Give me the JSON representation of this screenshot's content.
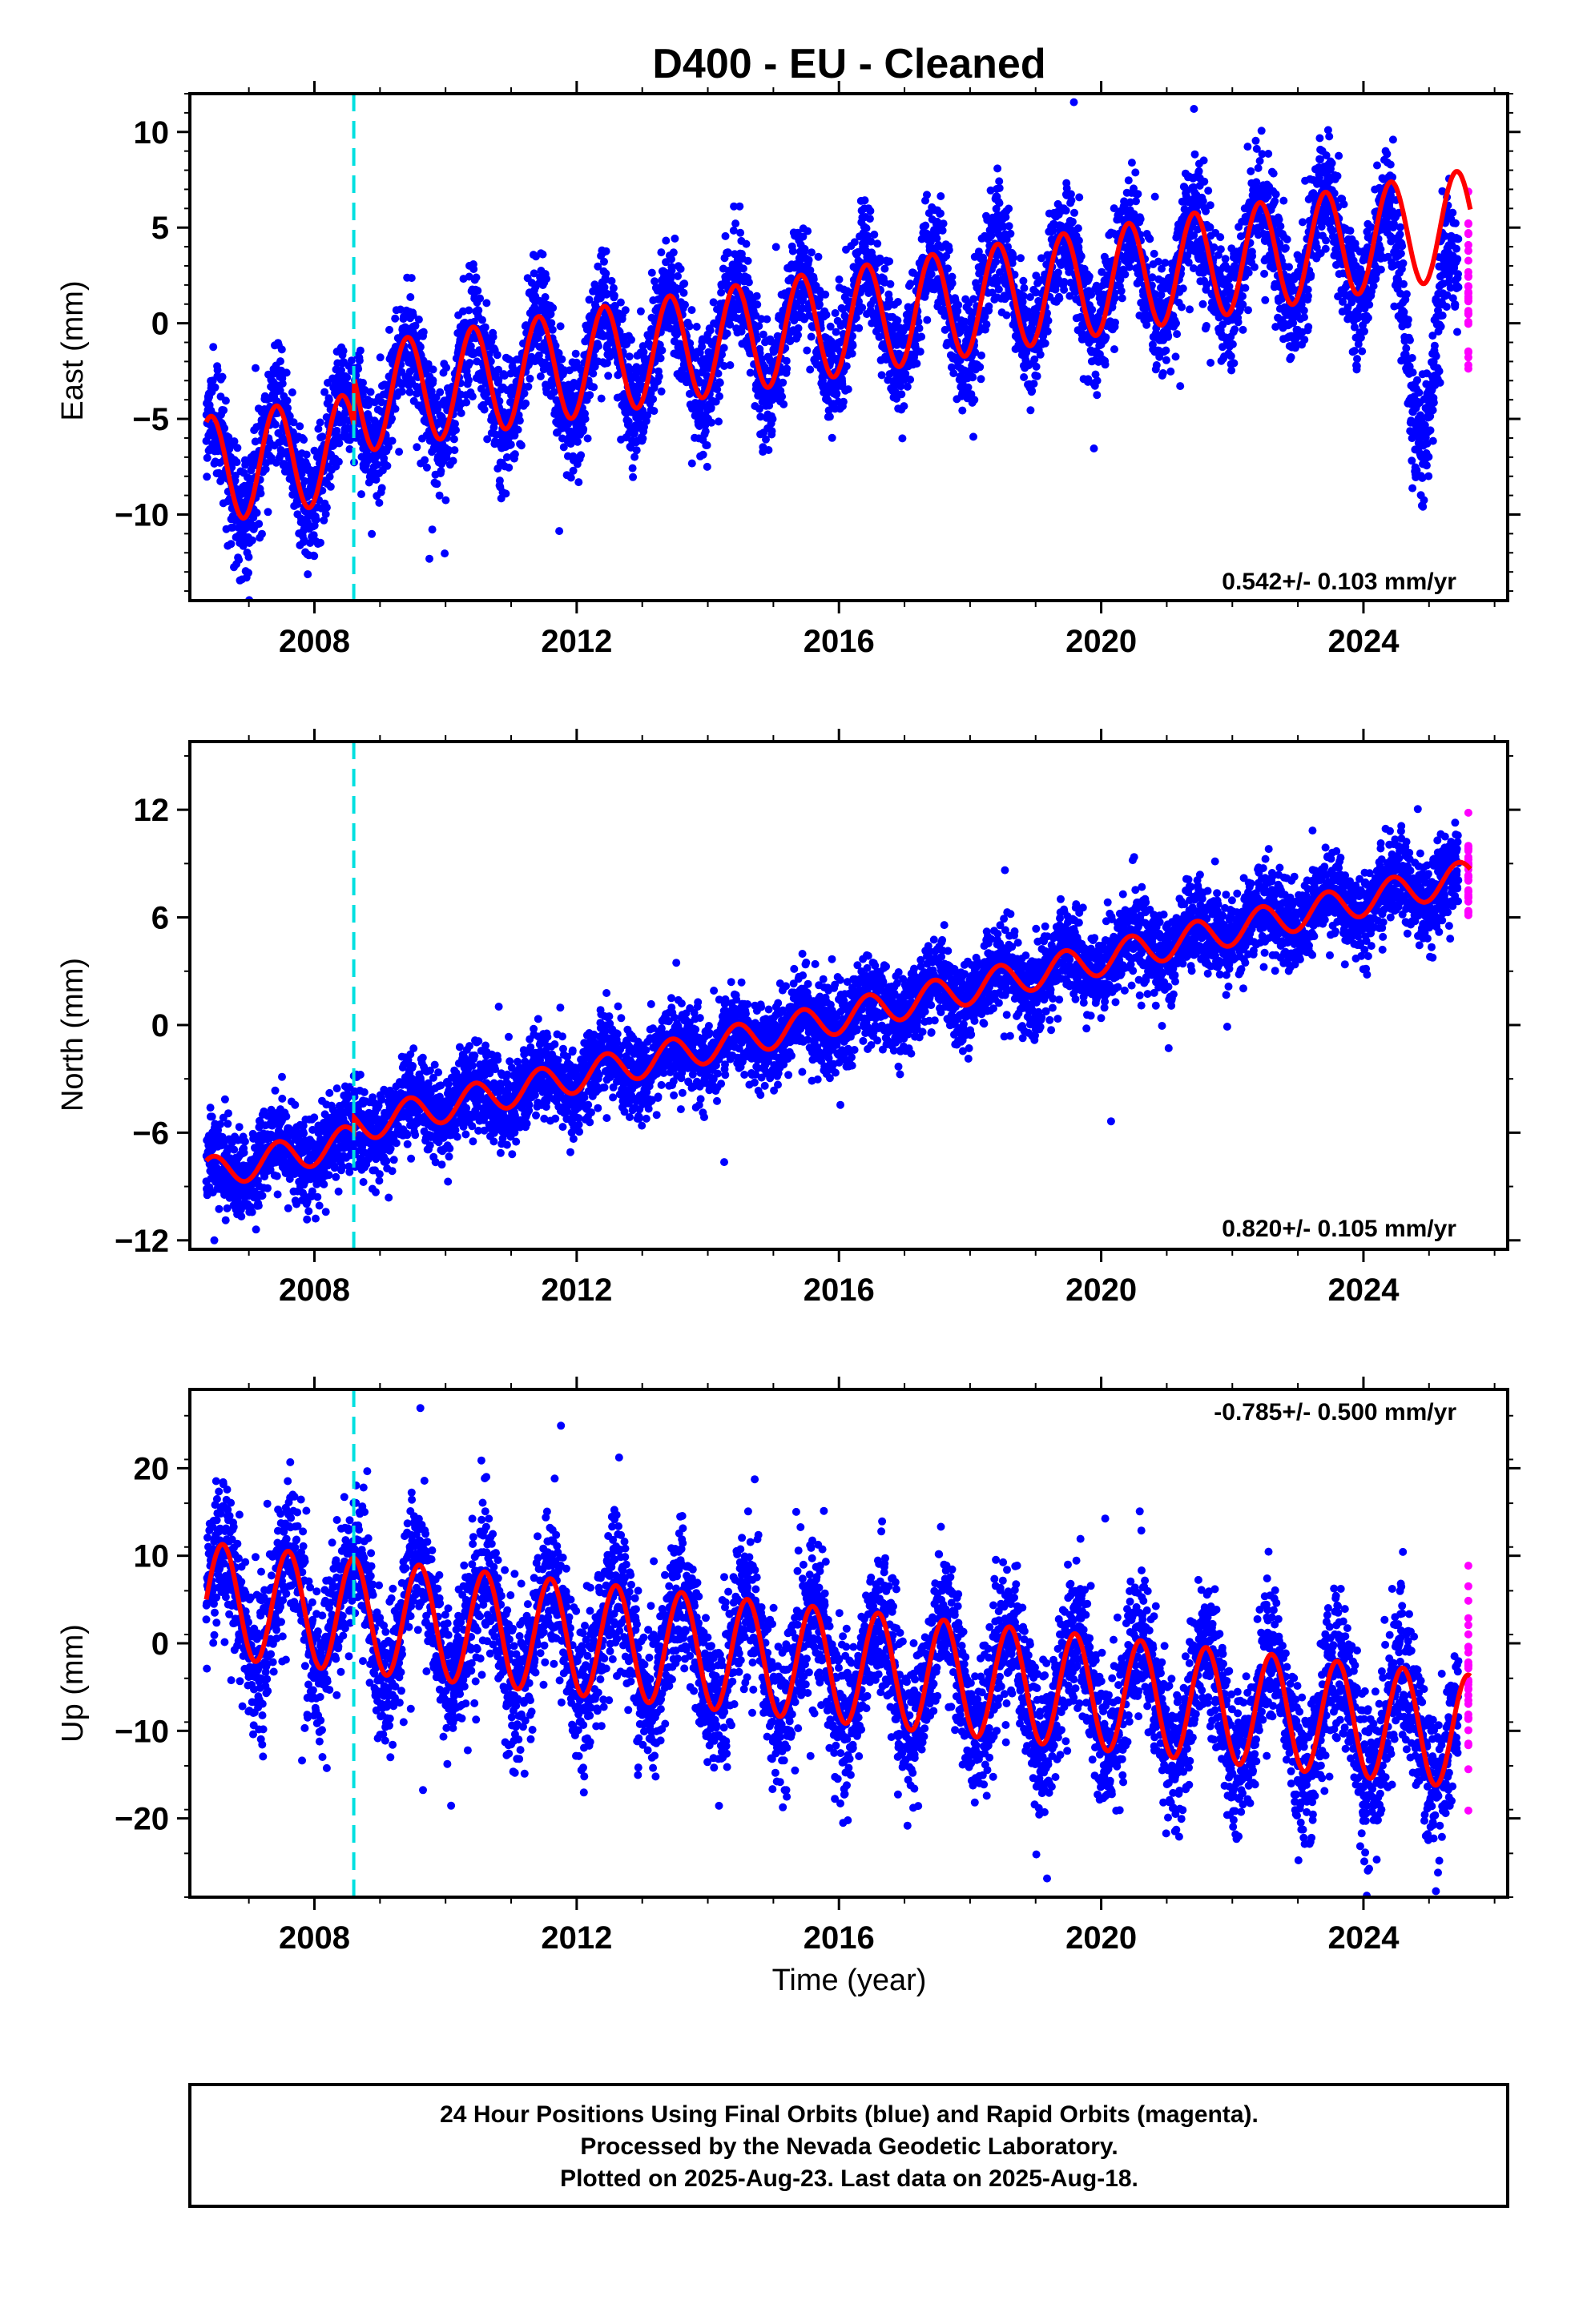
{
  "title": "D400  - EU - Cleaned",
  "colors": {
    "final_orbits": "#0000ff",
    "rapid_orbits": "#ff00ff",
    "model_fit": "#ff0000",
    "equipment_change": "#00e0e0",
    "frame": "#000000"
  },
  "xlabel": "Time (year)",
  "caption": [
    "24 Hour Positions Using Final Orbits (blue) and Rapid Orbits (magenta).",
    "Processed by the Nevada Geodetic Laboratory.",
    "Plotted on 2025-Aug-23. Last data on 2025-Aug-18."
  ],
  "chart_data": [
    {
      "type": "scatter",
      "component": "east",
      "ylabel": "East (mm)",
      "xlim": [
        2006.1,
        2026.2
      ],
      "ylim": [
        -14.5,
        12
      ],
      "x_ticks": [
        2008,
        2012,
        2016,
        2020,
        2024
      ],
      "y_ticks": [
        -10,
        -5,
        0,
        5,
        10
      ],
      "rate_label": "0.542+/- 0.103 mm/yr",
      "rate_label_position": "bottom-right",
      "equipment_change_year": 2008.6,
      "data_start": 2006.35,
      "rapid_start": 2025.45,
      "data_end": 2025.63,
      "model": {
        "rate_mm_yr": 0.542,
        "offset_mm": -7.7,
        "annual_amplitude_mm": 2.8,
        "annual_peak_year_fraction": 0.42,
        "step_at_equipment_change_mm": 2.5,
        "scatter_sd_mm": 1.5,
        "series_2024_2025": {
          "start": 2024.0,
          "drop_mm": -8.5,
          "recover_to_mm": 2.0
        }
      }
    },
    {
      "type": "scatter",
      "component": "north",
      "ylabel": "North (mm)",
      "xlim": [
        2006.1,
        2026.2
      ],
      "ylim": [
        -12.5,
        15.8
      ],
      "x_ticks": [
        2008,
        2012,
        2016,
        2020,
        2024
      ],
      "y_ticks": [
        -12,
        -6,
        0,
        6,
        12
      ],
      "rate_label": "0.820+/- 0.105 mm/yr",
      "rate_label_position": "bottom-right",
      "equipment_change_year": 2008.6,
      "data_start": 2006.35,
      "rapid_start": 2025.45,
      "data_end": 2025.63,
      "model": {
        "rate_mm_yr": 0.82,
        "offset_mm": -8.3,
        "annual_amplitude_mm": 0.9,
        "annual_peak_year_fraction": 0.45,
        "step_at_equipment_change_mm": 0.8,
        "scatter_sd_mm": 1.2
      }
    },
    {
      "type": "scatter",
      "component": "up",
      "ylabel": "Up (mm)",
      "xlim": [
        2006.1,
        2026.2
      ],
      "ylim": [
        -29,
        29
      ],
      "x_ticks": [
        2008,
        2012,
        2016,
        2020,
        2024
      ],
      "y_ticks": [
        -20,
        -10,
        0,
        10,
        20
      ],
      "rate_label": "-0.785+/- 0.500 mm/yr",
      "rate_label_position": "top-right",
      "equipment_change_year": 2008.6,
      "data_start": 2006.35,
      "rapid_start": 2025.45,
      "data_end": 2025.63,
      "model": {
        "rate_mm_yr": -0.785,
        "offset_mm": 5.0,
        "annual_amplitude_mm": 6.5,
        "annual_peak_year_fraction": 0.6,
        "step_at_equipment_change_mm": 0.0,
        "scatter_sd_mm": 4.2
      }
    }
  ]
}
